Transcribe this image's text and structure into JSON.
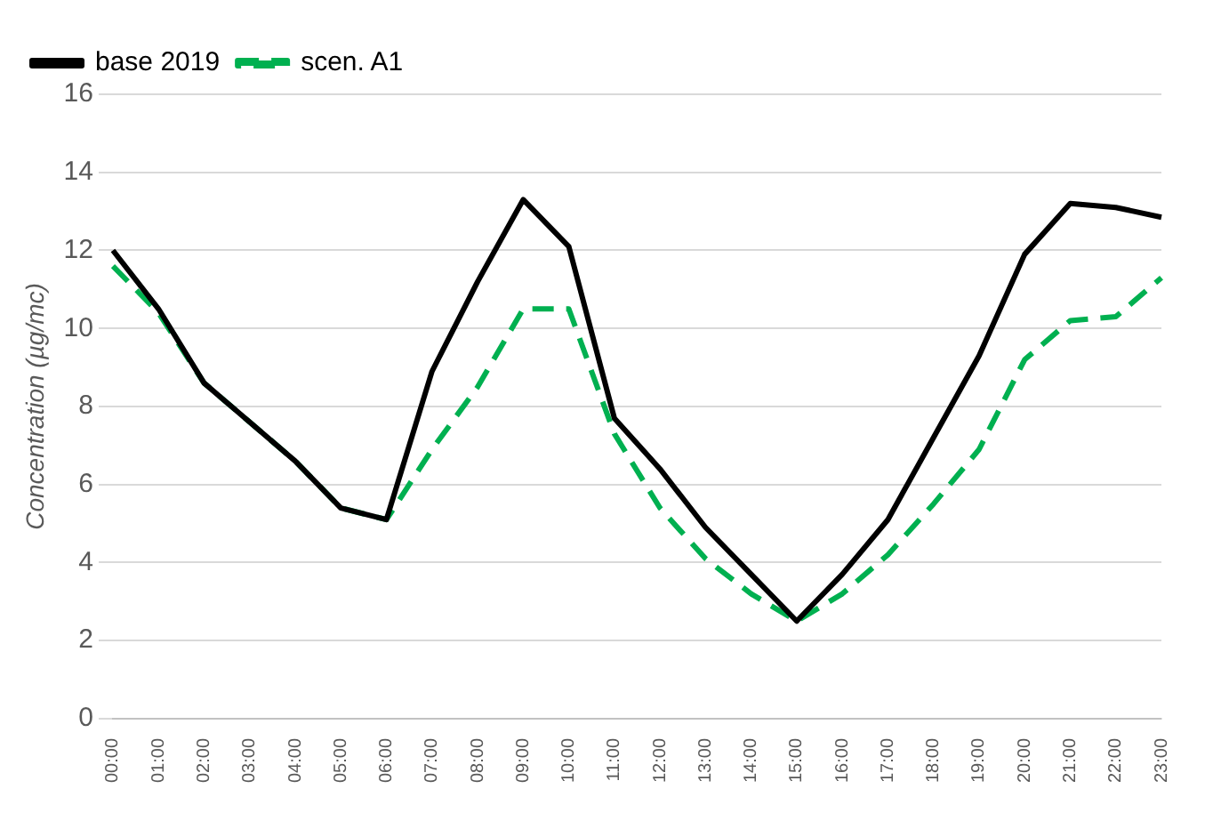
{
  "chart_data": {
    "type": "line",
    "ylabel": "Concentration (µg/mc)",
    "categories": [
      "00:00",
      "01:00",
      "02:00",
      "03:00",
      "04:00",
      "05:00",
      "06:00",
      "07:00",
      "08:00",
      "09:00",
      "10:00",
      "11:00",
      "12:00",
      "13:00",
      "14:00",
      "15:00",
      "16:00",
      "17:00",
      "18:00",
      "19:00",
      "20:00",
      "21:00",
      "22:00",
      "23:00"
    ],
    "series": [
      {
        "name": "base 2019",
        "color": "#000000",
        "line_style": "solid",
        "values": [
          12.0,
          10.5,
          8.6,
          7.6,
          6.6,
          5.4,
          5.1,
          8.9,
          11.2,
          13.3,
          12.1,
          7.7,
          6.4,
          4.9,
          3.7,
          2.5,
          3.7,
          5.1,
          7.2,
          9.3,
          11.9,
          13.2,
          13.1,
          12.85
        ]
      },
      {
        "name": "scen. A1",
        "color": "#00b050",
        "line_style": "dashed",
        "values": [
          11.6,
          10.4,
          8.6,
          7.6,
          6.6,
          5.4,
          5.1,
          6.9,
          8.5,
          10.5,
          10.5,
          7.3,
          5.4,
          4.1,
          3.2,
          2.5,
          3.2,
          4.2,
          5.5,
          6.9,
          9.2,
          10.2,
          10.3,
          11.3
        ]
      }
    ],
    "ylim": [
      0,
      16
    ],
    "yticks": [
      0,
      2,
      4,
      6,
      8,
      10,
      12,
      14,
      16
    ],
    "grid": "y",
    "legend": "top left",
    "marker": "none"
  }
}
